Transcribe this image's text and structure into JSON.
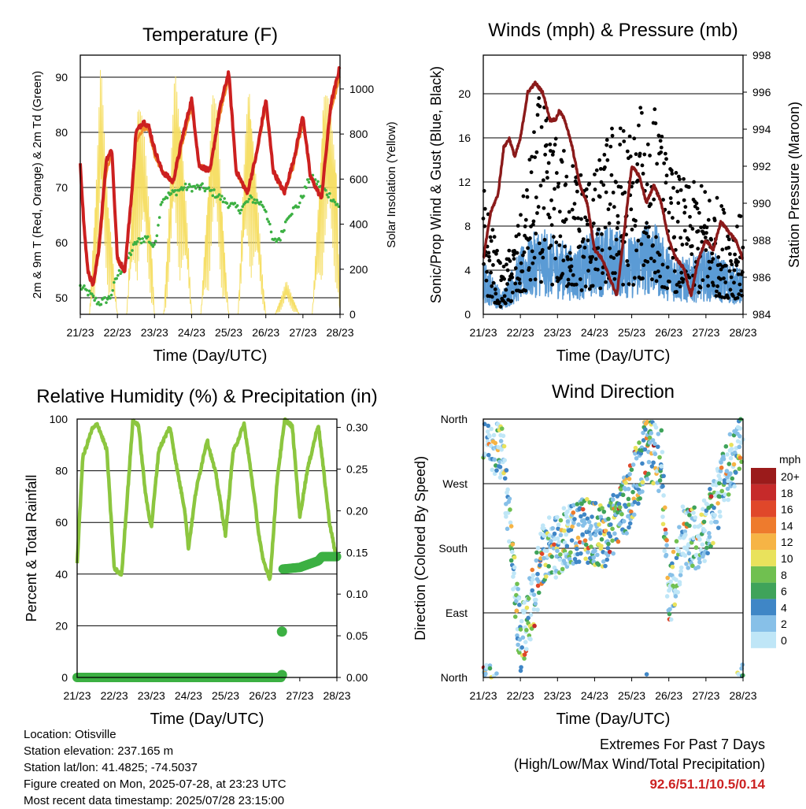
{
  "chart_data": [
    {
      "type": "line",
      "title": "Temperature (F)",
      "xlabel": "Time (Day/UTC)",
      "ylabel": "2m & 9m T (Red, Orange) & 2m Td (Green)",
      "y2label": "Solar Insolation (Yellow)",
      "categories": [
        "21/23",
        "22/23",
        "23/23",
        "24/23",
        "25/23",
        "26/23",
        "27/23",
        "28/23"
      ],
      "ylim": [
        47,
        94
      ],
      "yticks": [
        50,
        60,
        70,
        80,
        90
      ],
      "y2lim": [
        0,
        1150
      ],
      "y2ticks": [
        0,
        200,
        400,
        600,
        800,
        1000
      ],
      "grid": "horizontal",
      "series": [
        {
          "color": "#cc2020",
          "x": [
            0,
            0.1,
            0.2,
            0.35,
            0.5,
            0.7,
            0.85,
            1,
            1.2,
            1.4,
            1.5,
            1.7,
            1.85,
            2,
            2.2,
            2.5,
            2.75,
            3,
            3.2,
            3.5,
            3.75,
            4,
            4.2,
            4.5,
            4.75,
            5,
            5.2,
            5.5,
            5.75,
            6,
            6.2,
            6.5,
            6.75,
            7
          ],
          "y": [
            74.5,
            63,
            55,
            52,
            59,
            75,
            77,
            57,
            55,
            70,
            80,
            82,
            81,
            77,
            73,
            71,
            79,
            86,
            74,
            73,
            84,
            91,
            73,
            69,
            76,
            86,
            73,
            69,
            75,
            83,
            72,
            68,
            85,
            92
          ]
        },
        {
          "color": "#f08c2a",
          "x": [
            0,
            0.1,
            0.2,
            0.35,
            0.5,
            0.7,
            0.85,
            1,
            1.2,
            1.4,
            1.5,
            1.7,
            1.85,
            2,
            2.2,
            2.5,
            2.75,
            3,
            3.2,
            3.5,
            3.75,
            4,
            4.2,
            4.5,
            4.75,
            5,
            5.2,
            5.5,
            5.75,
            6,
            6.2,
            6.5,
            6.75,
            7
          ],
          "y": [
            74,
            63,
            55,
            52,
            58,
            73,
            76,
            57,
            55,
            69,
            78,
            81,
            80,
            76,
            73,
            71,
            78,
            85,
            74,
            73,
            83,
            90,
            73,
            69,
            76,
            85,
            73,
            69,
            74,
            82,
            72,
            68,
            84,
            90
          ]
        },
        {
          "color": "#3cb043",
          "x": [
            0,
            0.2,
            0.5,
            0.8,
            1,
            1.2,
            1.5,
            1.8,
            2,
            2.2,
            2.5,
            2.8,
            3,
            3.3,
            3.6,
            4,
            4.3,
            4.6,
            4.9,
            5,
            5.2,
            5.4,
            5.6,
            5.9,
            6.2,
            6.5,
            6.8,
            7
          ],
          "y": [
            52,
            51,
            49,
            50,
            54,
            56,
            60,
            61,
            59,
            68,
            69,
            70,
            70,
            70,
            69,
            67,
            66,
            68,
            67,
            66,
            60,
            61,
            65,
            67,
            72,
            70,
            68,
            66
          ]
        },
        {
          "color": "#f5dd60",
          "axis": "y2",
          "x": [
            0,
            0.25,
            0.45,
            0.55,
            0.7,
            0.9,
            1,
            1.25,
            1.45,
            1.55,
            1.7,
            1.9,
            2,
            2.25,
            2.45,
            2.55,
            2.7,
            2.9,
            3,
            3.25,
            3.45,
            3.55,
            3.7,
            3.9,
            4,
            4.25,
            4.45,
            4.55,
            4.7,
            4.9,
            5,
            5.25,
            5.45,
            5.55,
            5.7,
            5.9,
            6,
            6.25,
            6.45,
            6.55,
            6.7,
            6.9,
            7
          ],
          "y": [
            0,
            0,
            700,
            1130,
            650,
            200,
            0,
            0,
            700,
            1000,
            850,
            400,
            0,
            0,
            700,
            1100,
            900,
            350,
            0,
            0,
            600,
            1000,
            900,
            250,
            0,
            0,
            800,
            1080,
            700,
            200,
            0,
            0,
            100,
            150,
            90,
            0,
            0,
            0,
            600,
            1030,
            950,
            700,
            0
          ]
        }
      ]
    },
    {
      "type": "line",
      "title": "Winds (mph) & Pressure (mb)",
      "xlabel": "Time (Day/UTC)",
      "ylabel": "Sonic/Prop Wind & Gust (Blue, Black)",
      "y2label": "Station Pressure (Maroon)",
      "categories": [
        "21/23",
        "22/23",
        "23/23",
        "24/23",
        "25/23",
        "26/23",
        "27/23",
        "28/23"
      ],
      "ylim": [
        0,
        23.5
      ],
      "yticks": [
        0,
        4,
        8,
        12,
        16,
        20
      ],
      "y2lim": [
        984,
        998
      ],
      "y2ticks": [
        984,
        986,
        988,
        990,
        992,
        994,
        996,
        998
      ],
      "grid": "horizontal",
      "series": [
        {
          "color": "#8b1a1a",
          "axis": "y2",
          "x": [
            0,
            0.2,
            0.4,
            0.55,
            0.7,
            0.85,
            1,
            1.2,
            1.4,
            1.6,
            1.8,
            1.95,
            2.05,
            2.2,
            2.4,
            2.6,
            2.8,
            3,
            3.2,
            3.4,
            3.6,
            3.8,
            4,
            4.2,
            4.4,
            4.6,
            4.8,
            5,
            5.2,
            5.4,
            5.6,
            5.8,
            6,
            6.2,
            6.4,
            6.6,
            6.8,
            7
          ],
          "y": [
            987,
            989.5,
            990.5,
            993,
            993.5,
            992.5,
            993.5,
            996,
            996.5,
            996,
            994.5,
            994.5,
            995,
            994.5,
            993,
            991,
            990,
            987.5,
            987,
            986,
            985,
            988.5,
            992,
            991.5,
            990,
            991,
            990,
            988,
            987,
            986.5,
            985,
            987,
            988,
            987.5,
            989,
            988.5,
            988,
            987
          ]
        },
        {
          "color": "#000000",
          "x": [
            0,
            0.5,
            1,
            1.5,
            2,
            2.5,
            3,
            3.5,
            4,
            4.5,
            5,
            5.5,
            6,
            6.5,
            7
          ],
          "y": [
            12,
            4,
            9,
            20,
            16,
            14,
            13,
            18,
            17,
            21,
            14,
            12,
            12,
            10,
            9
          ]
        },
        {
          "color": "#5b9bd5",
          "x": [
            0,
            0.5,
            1,
            1.5,
            2,
            2.5,
            3,
            3.5,
            4,
            4.5,
            5,
            5.5,
            6,
            6.5,
            7
          ],
          "y": [
            5,
            2,
            6,
            8,
            7,
            6,
            8,
            8,
            7,
            9,
            6,
            5,
            6,
            5,
            4
          ]
        }
      ]
    },
    {
      "type": "line",
      "title": "Relative Humidity (%) & Precipitation (in)",
      "xlabel": "Time (Day/UTC)",
      "ylabel": "Percent & Total Rainfall",
      "categories": [
        "21/23",
        "22/23",
        "23/23",
        "24/23",
        "25/23",
        "26/23",
        "27/23",
        "28/23"
      ],
      "ylim": [
        0,
        100
      ],
      "yticks": [
        0,
        20,
        40,
        60,
        80,
        100
      ],
      "y2lim": [
        0,
        0.31
      ],
      "y2ticks": [
        "0.00",
        "0.05",
        "0.10",
        "0.15",
        "0.20",
        "0.25",
        "0.30"
      ],
      "grid": "horizontal",
      "series": [
        {
          "color": "#8cc63f",
          "x": [
            0,
            0.15,
            0.4,
            0.55,
            0.8,
            1,
            1.2,
            1.5,
            1.65,
            1.85,
            2,
            2.2,
            2.5,
            2.7,
            2.9,
            3,
            3.2,
            3.5,
            3.75,
            4,
            4.2,
            4.5,
            4.7,
            4.9,
            5,
            5.2,
            5.4,
            5.6,
            5.8,
            6,
            6.2,
            6.5,
            6.8,
            7
          ],
          "y": [
            44,
            85,
            96,
            98,
            88,
            42,
            40,
            99,
            98,
            70,
            58,
            88,
            97,
            80,
            65,
            50,
            72,
            92,
            78,
            55,
            87,
            98,
            78,
            55,
            46,
            38,
            78,
            100,
            97,
            62,
            80,
            98,
            60,
            45
          ]
        },
        {
          "color": "#3cb043",
          "axis": "y2",
          "x": [
            0,
            1,
            2,
            3,
            4,
            5,
            5.5,
            5.51,
            5.52,
            5.54,
            6,
            6.5,
            6.6,
            7
          ],
          "y": [
            0,
            0,
            0,
            0,
            0,
            0,
            0,
            0.003,
            0.055,
            0.13,
            0.132,
            0.14,
            0.145,
            0.145
          ]
        }
      ]
    },
    {
      "type": "scatter",
      "title": "Wind Direction",
      "xlabel": "Time (Day/UTC)",
      "ylabel": "Direction (Colored By Speed)",
      "categories": [
        "21/23",
        "22/23",
        "23/23",
        "24/23",
        "25/23",
        "26/23",
        "27/23",
        "28/23"
      ],
      "yticks": [
        "North",
        "East",
        "South",
        "West",
        "North"
      ],
      "colorbar": {
        "unit": "mph",
        "labels": [
          "0",
          "2",
          "4",
          "6",
          "8",
          "10",
          "12",
          "14",
          "16",
          "18",
          "20+"
        ],
        "colors": [
          "#bfe6f7",
          "#87c0e8",
          "#3f86c6",
          "#3fa35a",
          "#70c050",
          "#e9e25c",
          "#f6b445",
          "#ee7b2d",
          "#e0472a",
          "#c62a2a",
          "#9b1b1b"
        ]
      }
    }
  ],
  "info": {
    "location": "Location: Otisville",
    "elevation": "Station elevation: 237.165 m",
    "latlon": "Station lat/lon: 41.4825; -74.5037",
    "created": "Figure created on Mon, 2025-07-28, at 23:23 UTC",
    "recent": "Most recent data timestamp: 2025/07/28 23:15:00"
  },
  "extremes": {
    "line1": "Extremes For Past 7 Days",
    "line2": "(High/Low/Max Wind/Total Precipitation)",
    "values": "92.6/51.1/10.5/0.14"
  }
}
